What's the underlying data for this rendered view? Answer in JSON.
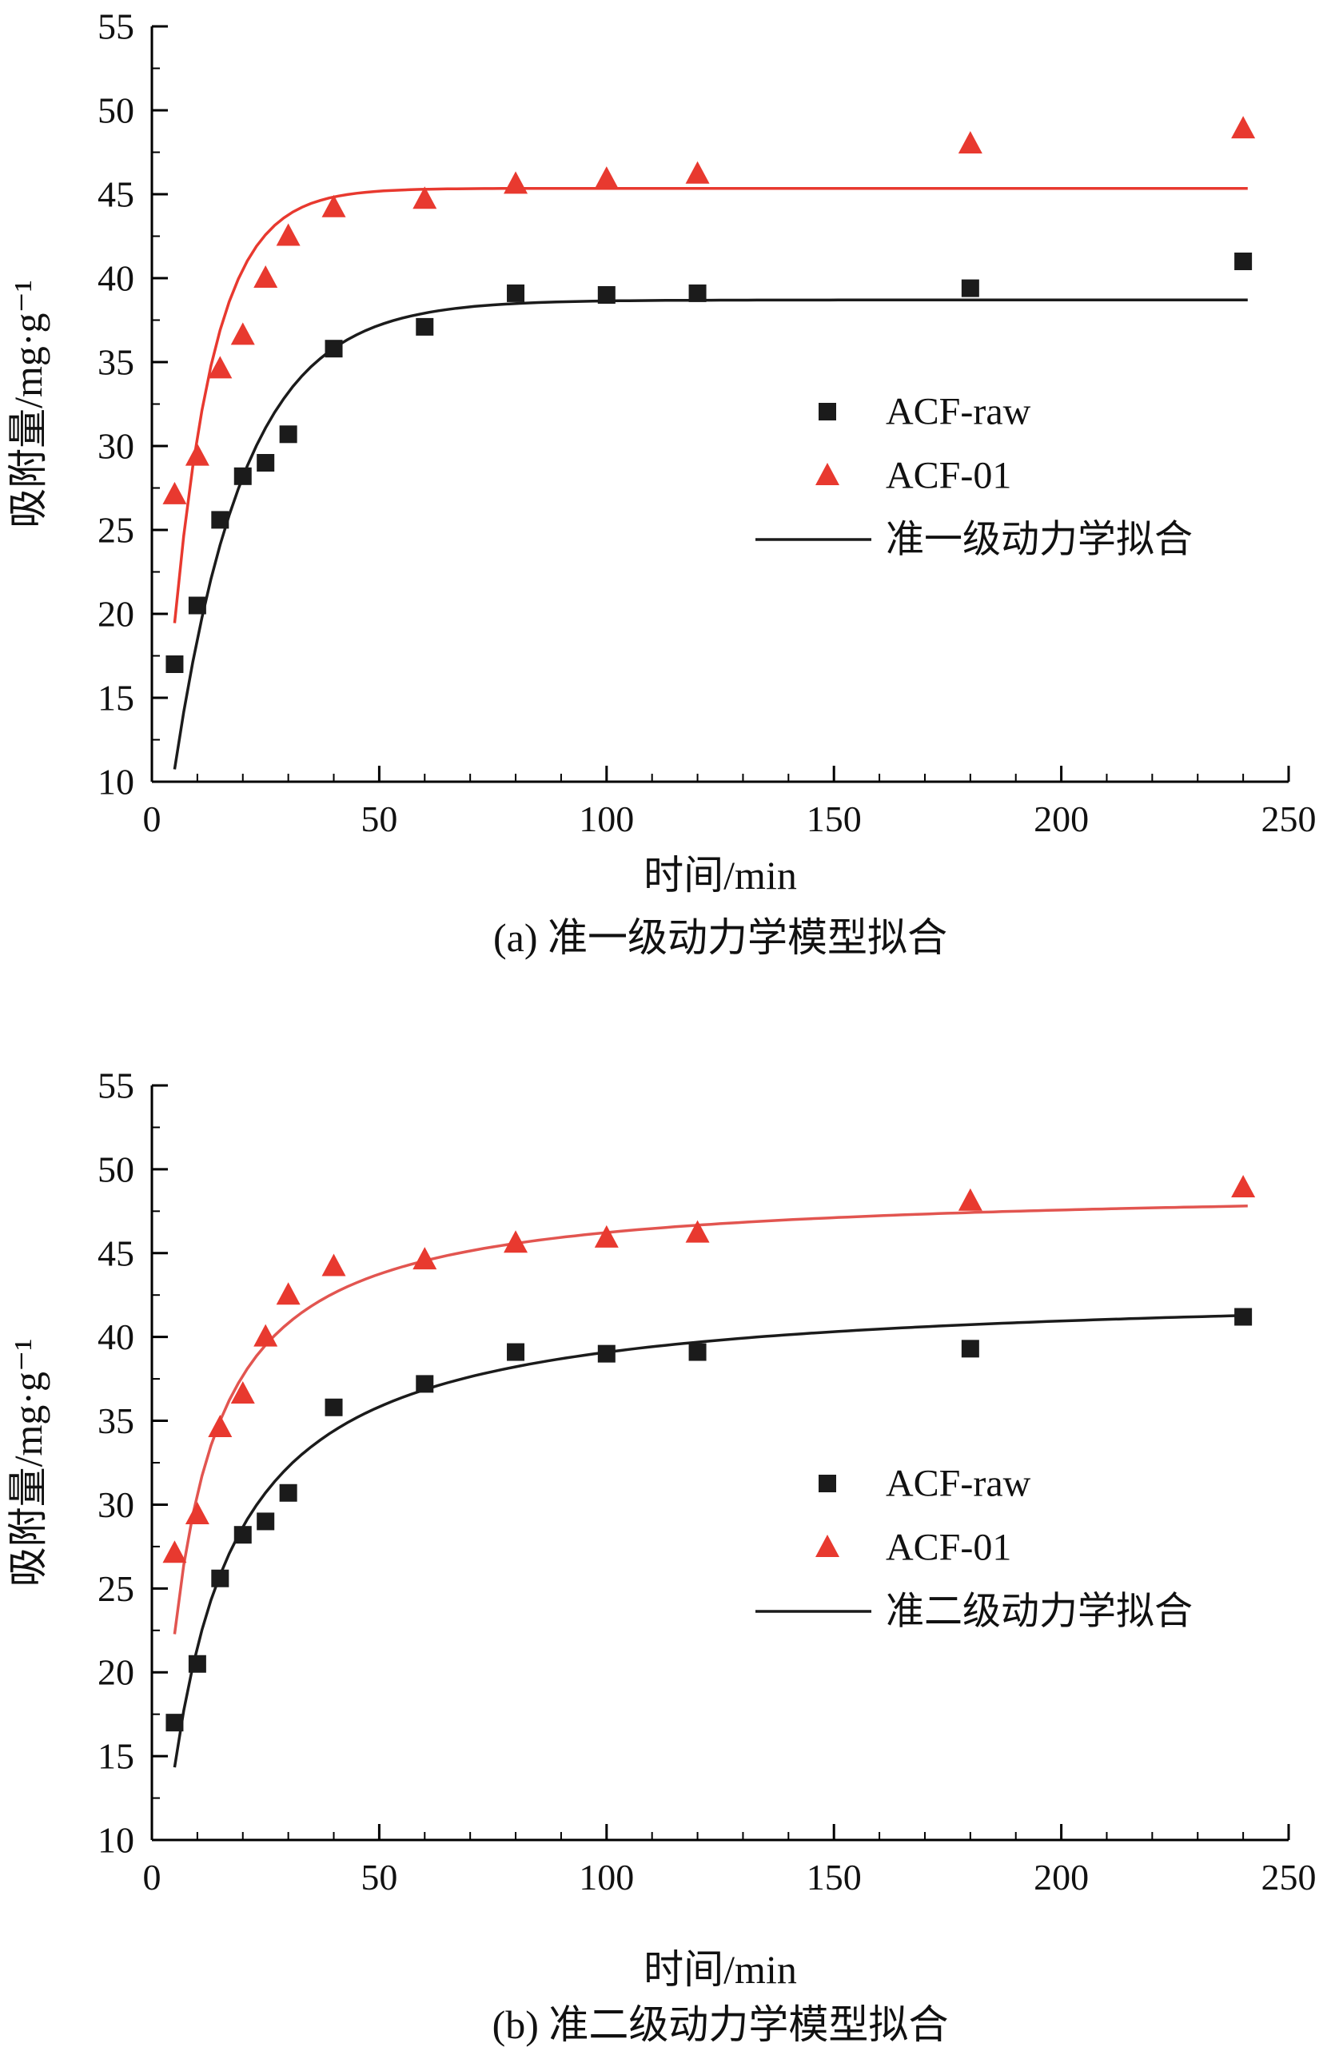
{
  "page": {
    "background": "#ffffff"
  },
  "figure": {
    "panels": [
      {
        "caption": "(a) 准一级动力学模型拟合"
      },
      {
        "caption": "(b) 准二级动力学模型拟合"
      }
    ]
  },
  "chart_data": [
    {
      "type": "scatter",
      "title": "(a) 准一级动力学模型拟合",
      "xlabel": "时间/min",
      "ylabel": "吸附量/mg·g⁻¹",
      "xlim": [
        0,
        250
      ],
      "ylim": [
        10,
        55
      ],
      "x_ticks": [
        0,
        50,
        100,
        150,
        200,
        250
      ],
      "y_ticks": [
        10,
        15,
        20,
        25,
        30,
        35,
        40,
        45,
        50,
        55
      ],
      "x_minor_step": 10,
      "y_minor_step": 2.5,
      "grid": false,
      "legend": {
        "position": "center-right",
        "entries": [
          {
            "label": "ACF-raw",
            "marker": "square",
            "color": "#1b1b1b"
          },
          {
            "label": "ACF-01",
            "marker": "triangle",
            "color": "#e8392f"
          },
          {
            "label": "准一级动力学拟合",
            "marker": "line",
            "color": "#1b1b1b"
          }
        ]
      },
      "series": [
        {
          "name": "ACF-raw",
          "marker": "square",
          "color": "#1b1b1b",
          "x": [
            5,
            10,
            15,
            20,
            25,
            30,
            40,
            60,
            80,
            100,
            120,
            180,
            240
          ],
          "y": [
            17.0,
            20.5,
            25.6,
            28.2,
            29.0,
            30.7,
            35.8,
            37.1,
            39.1,
            39.0,
            39.1,
            39.4,
            41.0
          ]
        },
        {
          "name": "ACF-01",
          "marker": "triangle",
          "color": "#e8392f",
          "x": [
            5,
            10,
            15,
            20,
            25,
            30,
            40,
            60,
            80,
            100,
            120,
            180,
            240
          ],
          "y": [
            27.1,
            29.4,
            34.6,
            36.6,
            40.0,
            42.5,
            44.2,
            44.7,
            45.6,
            45.9,
            46.2,
            48.0,
            48.9
          ]
        }
      ],
      "fits": [
        {
          "name": "ACF-raw 准一级动力学拟合",
          "model": "pseudo-first-order",
          "color": "#1b1b1b",
          "qe": 38.7,
          "k": 0.065,
          "t_range": [
            5,
            242
          ]
        },
        {
          "name": "ACF-01 准一级动力学拟合",
          "model": "pseudo-first-order",
          "color": "#e8392f",
          "qe": 45.35,
          "k": 0.112,
          "t_range": [
            5,
            242
          ]
        }
      ]
    },
    {
      "type": "scatter",
      "title": "(b) 准二级动力学模型拟合",
      "xlabel": "时间/min",
      "ylabel": "吸附量/mg·g⁻¹",
      "xlim": [
        0,
        250
      ],
      "ylim": [
        10,
        55
      ],
      "x_ticks": [
        0,
        50,
        100,
        150,
        200,
        250
      ],
      "y_ticks": [
        10,
        15,
        20,
        25,
        30,
        35,
        40,
        45,
        50,
        55
      ],
      "x_minor_step": 10,
      "y_minor_step": 2.5,
      "grid": false,
      "legend": {
        "position": "center-right",
        "entries": [
          {
            "label": "ACF-raw",
            "marker": "square",
            "color": "#1b1b1b"
          },
          {
            "label": "ACF-01",
            "marker": "triangle",
            "color": "#e8392f"
          },
          {
            "label": "准二级动力学拟合",
            "marker": "line",
            "color": "#1b1b1b"
          }
        ]
      },
      "series": [
        {
          "name": "ACF-raw",
          "marker": "square",
          "color": "#1b1b1b",
          "x": [
            5,
            10,
            15,
            20,
            25,
            30,
            40,
            60,
            80,
            100,
            120,
            180,
            240
          ],
          "y": [
            17.0,
            20.5,
            25.6,
            28.2,
            29.0,
            30.7,
            35.8,
            37.2,
            39.1,
            39.0,
            39.1,
            39.3,
            41.2
          ]
        },
        {
          "name": "ACF-01",
          "marker": "triangle",
          "color": "#e8392f",
          "x": [
            5,
            10,
            15,
            20,
            25,
            30,
            40,
            60,
            80,
            100,
            120,
            180,
            240
          ],
          "y": [
            27.1,
            29.4,
            34.6,
            36.6,
            40.0,
            42.5,
            44.2,
            44.6,
            45.6,
            45.9,
            46.2,
            48.1,
            48.9
          ]
        }
      ],
      "fits": [
        {
          "name": "ACF-raw 准二级动力学拟合",
          "model": "pseudo-second-order",
          "color": "#1b1b1b",
          "qe": 43.0,
          "B": 10.0,
          "t_range": [
            5,
            242
          ]
        },
        {
          "name": "ACF-01 准二级动力学拟合",
          "model": "pseudo-second-order",
          "color": "#e25550",
          "qe": 49.0,
          "B": 6.0,
          "t_range": [
            5,
            242
          ]
        }
      ]
    }
  ]
}
